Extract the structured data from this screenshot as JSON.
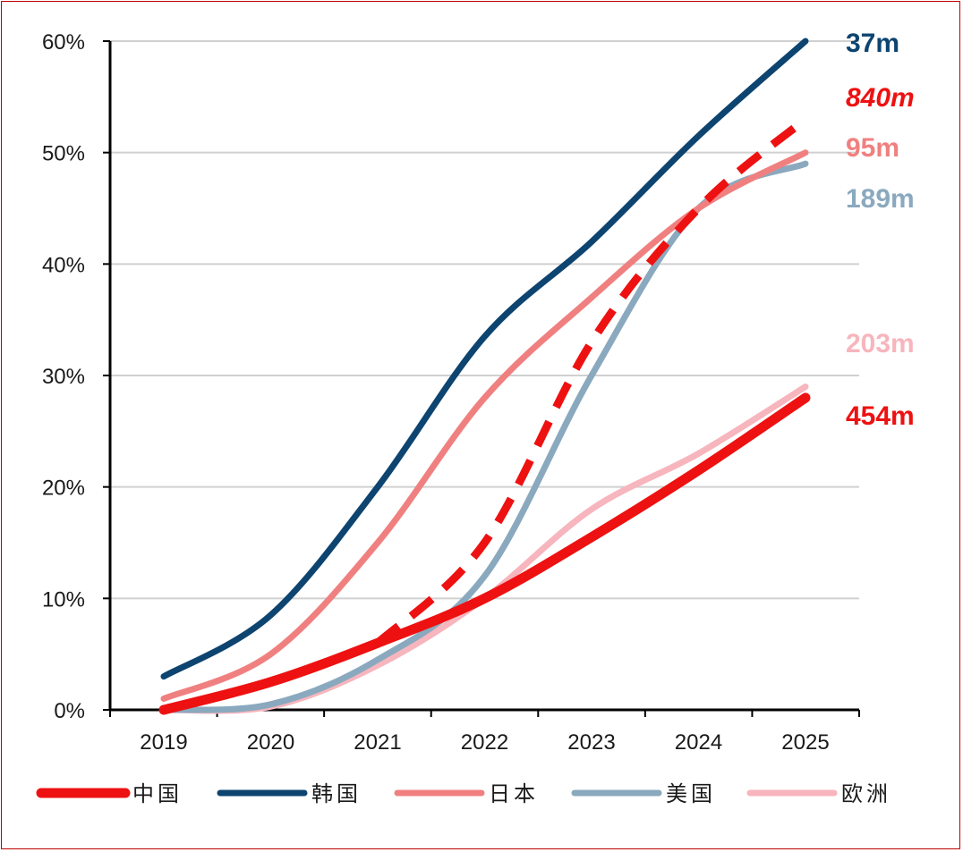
{
  "chart_data": {
    "type": "line",
    "title": "",
    "xlabel": "",
    "ylabel": "",
    "x": [
      "2019",
      "2020",
      "2021",
      "2022",
      "2023",
      "2024",
      "2025"
    ],
    "ylim": [
      0,
      60
    ],
    "yticks": [
      "0%",
      "10%",
      "20%",
      "30%",
      "40%",
      "50%",
      "60%"
    ],
    "grid": "horizontal",
    "legend_position": "bottom",
    "series": [
      {
        "name": "中国",
        "color": "#ee1111",
        "style": "solid-thick",
        "values": [
          0,
          2.5,
          6,
          10,
          15.5,
          21.5,
          28
        ],
        "end_label": "454m"
      },
      {
        "name": "韩国",
        "color": "#0d4470",
        "style": "solid",
        "values": [
          3,
          8.5,
          20,
          33.5,
          42,
          51.5,
          60
        ],
        "end_label": "37m"
      },
      {
        "name": "日本",
        "color": "#f08080",
        "style": "solid",
        "values": [
          1,
          5,
          15,
          28,
          37,
          45,
          50
        ],
        "end_label": "95m"
      },
      {
        "name": "美国",
        "color": "#8aa9be",
        "style": "solid",
        "values": [
          0,
          0.5,
          4.5,
          12,
          30,
          45,
          49
        ],
        "end_label": "189m"
      },
      {
        "name": "欧洲",
        "color": "#f7b5bd",
        "style": "solid",
        "values": [
          0,
          0.3,
          4,
          10,
          18,
          23,
          29
        ],
        "end_label": "203m"
      },
      {
        "name": "",
        "color": "#ee1111",
        "style": "dashed",
        "values": [
          null,
          null,
          6,
          15,
          33,
          45,
          53
        ],
        "end_label": "840m"
      }
    ]
  }
}
